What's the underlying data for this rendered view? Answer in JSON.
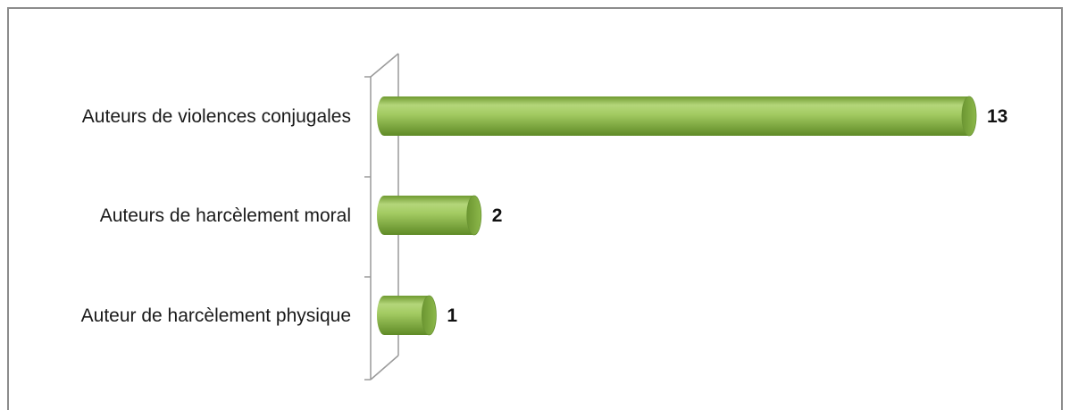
{
  "chart_data": {
    "type": "bar",
    "orientation": "horizontal",
    "categories": [
      "Auteurs de violences conjugales",
      "Auteurs de harcèlement moral",
      "Auteur de harcèlement physique"
    ],
    "values": [
      13,
      2,
      1
    ],
    "data_labels": [
      "13",
      "2",
      "1"
    ],
    "title": "",
    "xlabel": "",
    "ylabel": "",
    "xlim": [
      0,
      13
    ],
    "grid": false,
    "legend": "none",
    "style": "3d-cylinder",
    "colors": {
      "bar_top": "#b4d67a",
      "bar_mid": "#8fbd4c",
      "bar_bottom": "#5f8a26",
      "bar_cap": "#7aa83a",
      "axis": "#9a9a9a"
    }
  }
}
